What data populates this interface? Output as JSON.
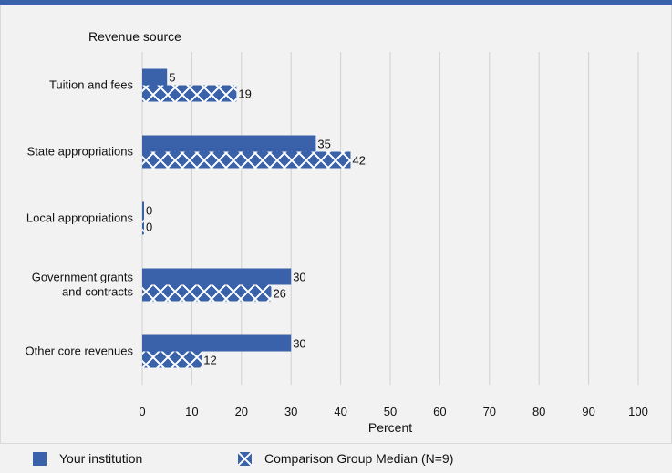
{
  "chart_data": {
    "type": "bar",
    "orientation": "horizontal",
    "title": "",
    "category_axis_title": "Revenue source",
    "xlabel": "Percent",
    "xlim": [
      0,
      100
    ],
    "xticks": [
      "0",
      "10",
      "20",
      "30",
      "40",
      "50",
      "60",
      "70",
      "80",
      "90",
      "100"
    ],
    "categories": [
      [
        "Tuition and fees"
      ],
      [
        "State appropriations"
      ],
      [
        "Local appropriations"
      ],
      [
        "Government grants",
        "and contracts"
      ],
      [
        "Other core revenues"
      ]
    ],
    "series": [
      {
        "name": "Your institution",
        "values": [
          5,
          35,
          0,
          30,
          30
        ],
        "labels": [
          "5",
          "35",
          "0",
          "30",
          "30"
        ],
        "pattern": "solid",
        "color": "#3a62aa"
      },
      {
        "name": "Comparison Group Median (N=9)",
        "values": [
          19,
          42,
          0,
          26,
          12
        ],
        "labels": [
          "19",
          "42",
          "0",
          "26",
          "12"
        ],
        "pattern": "crosshatch",
        "color": "#3a62aa"
      }
    ],
    "grid": true,
    "legend_position": "bottom"
  },
  "legend": {
    "item1": "Your institution",
    "item2": "Comparison Group Median (N=9)"
  }
}
